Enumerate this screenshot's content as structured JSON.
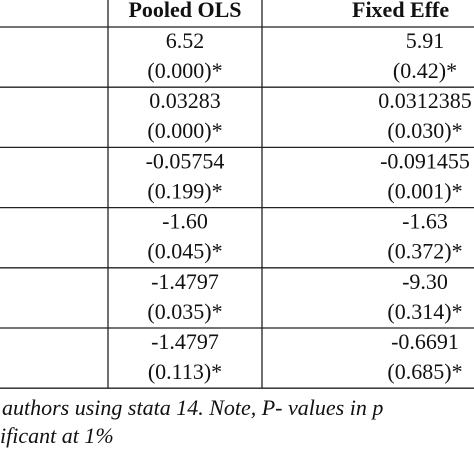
{
  "table": {
    "header": [
      "Pooled OLS",
      "Fixed Effe"
    ],
    "rows": [
      [
        "6.52",
        "(0.000)*",
        "5.91",
        "(0.42)*"
      ],
      [
        "0.03283",
        "(0.000)*",
        "0.0312385",
        "(0.030)*"
      ],
      [
        "-0.05754",
        "(0.199)*",
        "-0.091455",
        "(0.001)*"
      ],
      [
        "-1.60",
        "(0.045)*",
        "-1.63",
        "(0.372)*"
      ],
      [
        "-1.4797",
        "(0.035)*",
        "-9.30",
        "(0.314)*"
      ],
      [
        "-1.4797",
        "(0.113)*",
        "-0.6691",
        "(0.685)*"
      ]
    ]
  },
  "footnote": [
    "authors using stata 14. Note, P- values in p",
    "ificant at 1%"
  ]
}
